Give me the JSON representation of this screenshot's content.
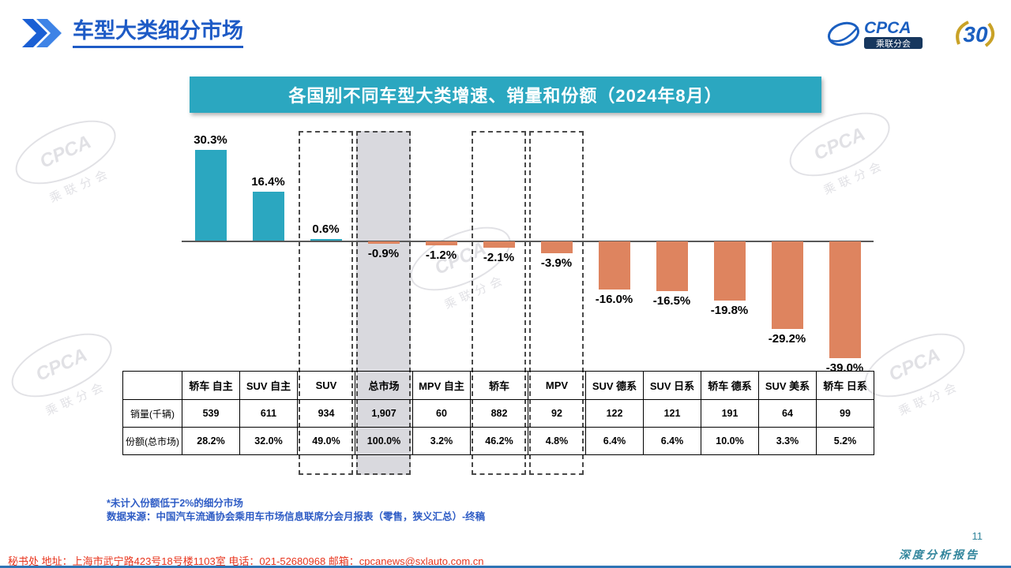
{
  "header": {
    "title": "车型大类细分市场"
  },
  "logos": {
    "cpca": "CPCA",
    "cpca_sub": "乘联分会",
    "anniversary": "30"
  },
  "banner": {
    "title": "各国别不同车型大类增速、销量和份额（2024年8月）"
  },
  "chart_data": {
    "type": "bar",
    "title": "各国别不同车型大类增速、销量和份额（2024年8月）",
    "categories": [
      "轿车 自主",
      "SUV 自主",
      "SUV",
      "总市场",
      "MPV 自主",
      "轿车",
      "MPV",
      "SUV 德系",
      "SUV 日系",
      "轿车 德系",
      "SUV 美系",
      "轿车 日系"
    ],
    "values": [
      30.3,
      16.4,
      0.6,
      -0.9,
      -1.2,
      -2.1,
      -3.9,
      -16.0,
      -16.5,
      -19.8,
      -29.2,
      -39.0
    ],
    "value_labels": [
      "30.3%",
      "16.4%",
      "0.6%",
      "-0.9%",
      "-1.2%",
      "-2.1%",
      "-3.9%",
      "-16.0%",
      "-16.5%",
      "-19.8%",
      "-29.2%",
      "-39.0%"
    ],
    "unit": "%",
    "ylim": [
      -42,
      34
    ],
    "grid": false,
    "colors": {
      "positive": "#2BA7C0",
      "negative": "#DE845F",
      "highlight_fill": "#d9d9de"
    },
    "highlight": {
      "dashed_columns": [
        2,
        3,
        5,
        6
      ],
      "filled_column": 3
    }
  },
  "table": {
    "rows": [
      {
        "label": "销量(千辆)",
        "values": [
          "539",
          "611",
          "934",
          "1,907",
          "60",
          "882",
          "92",
          "122",
          "121",
          "191",
          "64",
          "99"
        ]
      },
      {
        "label": "份额(总市场)",
        "values": [
          "28.2%",
          "32.0%",
          "49.0%",
          "100.0%",
          "3.2%",
          "46.2%",
          "4.8%",
          "6.4%",
          "6.4%",
          "10.0%",
          "3.3%",
          "5.2%"
        ]
      }
    ]
  },
  "footnotes": {
    "line1": "*未计入份额低于2%的细分市场",
    "line2": "数据来源：中国汽车流通协会乘用车市场信息联席分会月报表（零售，狭义汇总）-终稿"
  },
  "footer": {
    "text": "秘书处  地址：上海市武宁路423号18号楼1103室 电话：021-52680968  邮箱：cpcanews@sxlauto.com.cn",
    "report_label": "深度分析报告",
    "page_number": "11"
  },
  "watermark": {
    "main": "CPCA",
    "sub": "乘联分会"
  }
}
